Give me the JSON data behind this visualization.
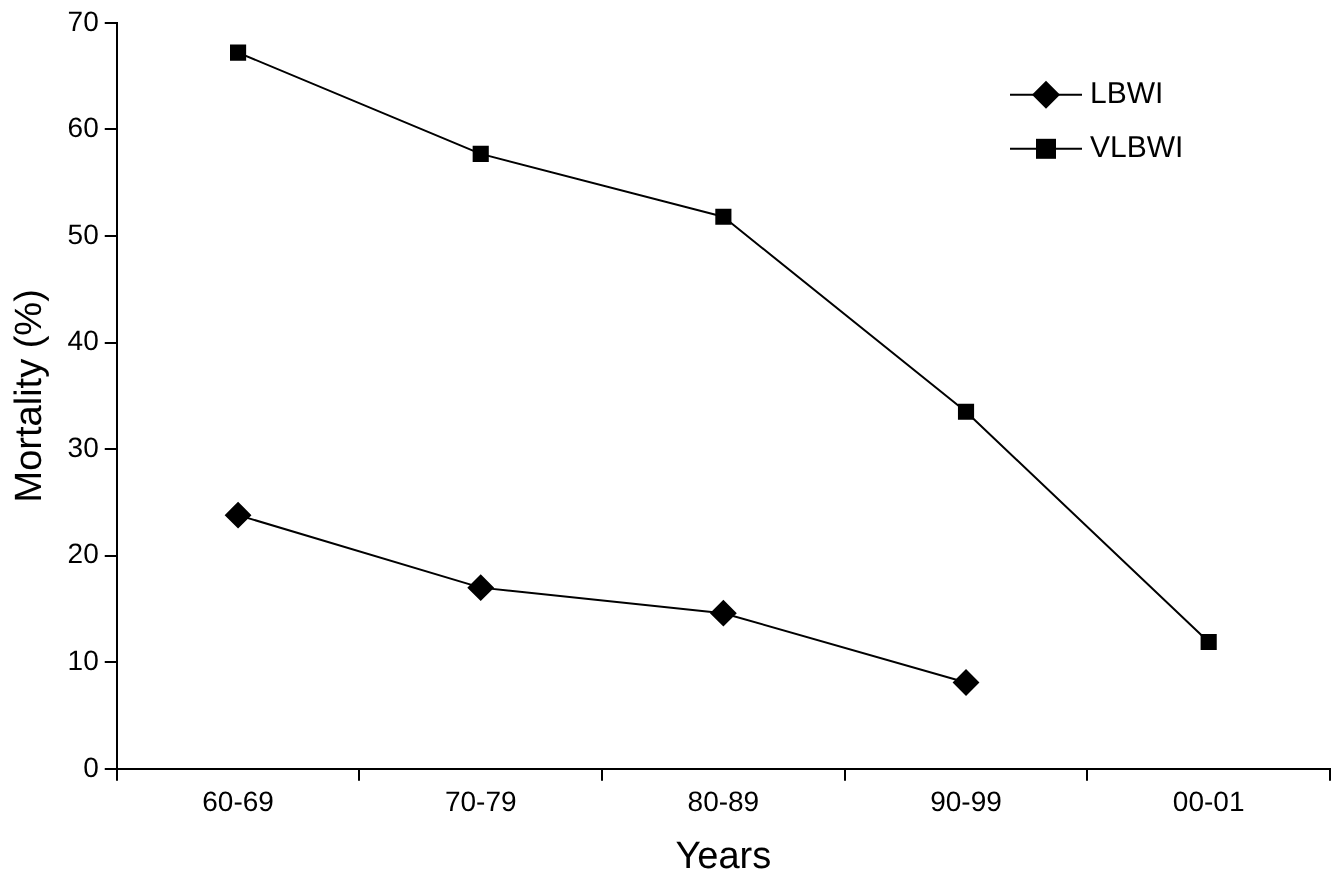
{
  "chart_data": {
    "type": "line",
    "xlabel": "Years",
    "ylabel": "Mortality (%)",
    "categories": [
      "60-69",
      "70-79",
      "80-89",
      "90-99",
      "00-01"
    ],
    "series": [
      {
        "name": "LBWI",
        "color": "#000000",
        "marker": "diamond",
        "values": [
          23.8,
          17.0,
          14.6,
          8.1,
          null
        ]
      },
      {
        "name": "VLBWI",
        "color": "#000000",
        "marker": "square",
        "values": [
          67.2,
          57.7,
          51.8,
          33.5,
          11.9
        ]
      }
    ],
    "ylim": [
      0,
      70
    ],
    "yticks": [
      0,
      10,
      20,
      30,
      40,
      50,
      60,
      70
    ],
    "grid": false,
    "legend": "top right",
    "line_style": "solid"
  }
}
